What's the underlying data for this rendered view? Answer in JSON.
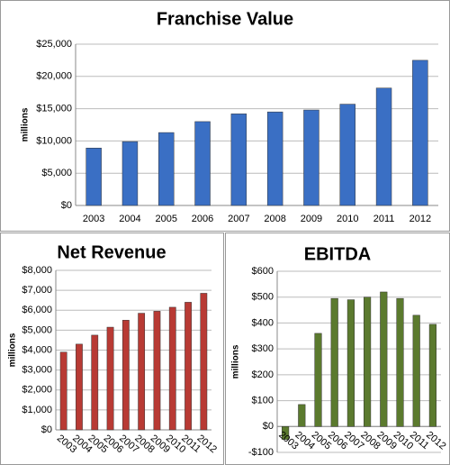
{
  "chart_data": [
    {
      "type": "bar",
      "title": "Franchise Value",
      "y_label": "millions",
      "categories": [
        "2003",
        "2004",
        "2005",
        "2006",
        "2007",
        "2008",
        "2009",
        "2010",
        "2011",
        "2012"
      ],
      "values": [
        8900,
        9900,
        11300,
        13000,
        14200,
        14500,
        14800,
        15700,
        18200,
        22500
      ],
      "color": "#3a6fc4",
      "ylim": [
        0,
        25000
      ],
      "yticks": [
        {
          "value": 0,
          "label": "$0"
        },
        {
          "value": 5000,
          "label": "$5,000"
        },
        {
          "value": 10000,
          "label": "$10,000"
        },
        {
          "value": 15000,
          "label": "$15,000"
        },
        {
          "value": 20000,
          "label": "$20,000"
        },
        {
          "value": 25000,
          "label": "$25,000"
        }
      ],
      "grid": true
    },
    {
      "type": "bar",
      "title": "Net Revenue",
      "y_label": "millions",
      "categories": [
        "2003",
        "2004",
        "2005",
        "2006",
        "2007",
        "2008",
        "2009",
        "2010",
        "2011",
        "2012"
      ],
      "values": [
        3900,
        4300,
        4750,
        5150,
        5500,
        5850,
        5950,
        6150,
        6400,
        6850
      ],
      "color": "#b83a34",
      "ylim": [
        0,
        8000
      ],
      "yticks": [
        {
          "value": 0,
          "label": "$0"
        },
        {
          "value": 1000,
          "label": "$1,000"
        },
        {
          "value": 2000,
          "label": "$2,000"
        },
        {
          "value": 3000,
          "label": "$3,000"
        },
        {
          "value": 4000,
          "label": "$4,000"
        },
        {
          "value": 5000,
          "label": "$5,000"
        },
        {
          "value": 6000,
          "label": "$6,000"
        },
        {
          "value": 7000,
          "label": "$7,000"
        },
        {
          "value": 8000,
          "label": "$8,000"
        }
      ],
      "grid": true
    },
    {
      "type": "bar",
      "title": "EBITDA",
      "y_label": "millions",
      "categories": [
        "2003",
        "2004",
        "2005",
        "2006",
        "2007",
        "2008",
        "2009",
        "2010",
        "2011",
        "2012"
      ],
      "values": [
        -50,
        85,
        360,
        495,
        490,
        500,
        520,
        495,
        430,
        395
      ],
      "color": "#5b7a2e",
      "ylim": [
        -100,
        600
      ],
      "yticks": [
        {
          "value": -100,
          "label": "-$100"
        },
        {
          "value": 0,
          "label": "$0"
        },
        {
          "value": 100,
          "label": "$100"
        },
        {
          "value": 200,
          "label": "$200"
        },
        {
          "value": 300,
          "label": "$300"
        },
        {
          "value": 400,
          "label": "$400"
        },
        {
          "value": 500,
          "label": "$500"
        },
        {
          "value": 600,
          "label": "$600"
        }
      ],
      "grid": true
    }
  ]
}
